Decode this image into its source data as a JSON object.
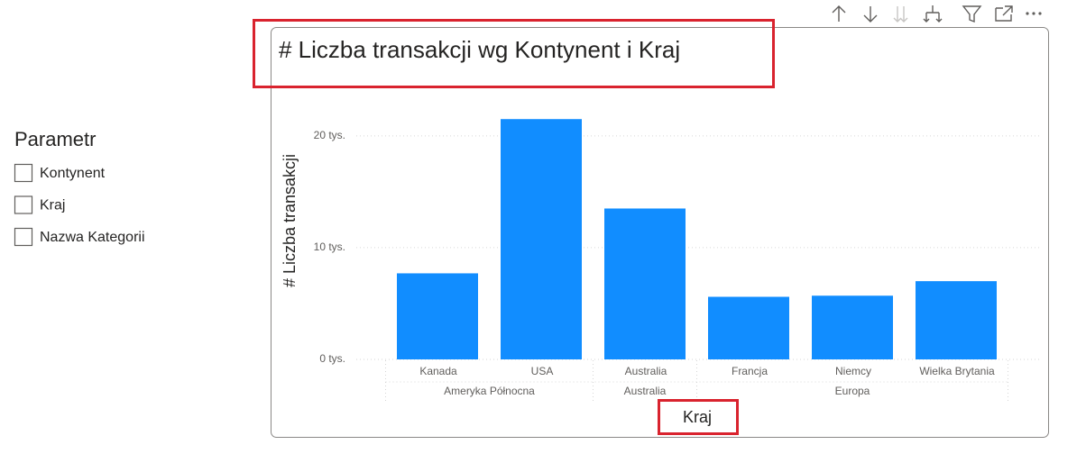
{
  "slicer": {
    "title": "Parametr",
    "items": [
      "Kontynent",
      "Kraj",
      "Nazwa Kategorii"
    ]
  },
  "chart_data": {
    "type": "bar",
    "title": "# Liczba transakcji wg Kontynent i Kraj",
    "y_label": "# Liczba transakcji",
    "x_label": "Kraj",
    "categories": [
      "Kanada",
      "USA",
      "Australia",
      "Francja",
      "Niemcy",
      "Wielka Brytania"
    ],
    "category_groups": [
      "Ameryka Północna",
      "Ameryka Północna",
      "Australia",
      "Europa",
      "Europa",
      "Europa"
    ],
    "values": [
      7700,
      21500,
      13500,
      5600,
      5700,
      7000
    ],
    "color": "#118dff",
    "ylim": [
      0,
      22000
    ],
    "yticks": [
      {
        "value": 0,
        "label": "0 tys."
      },
      {
        "value": 10000,
        "label": "10 tys."
      },
      {
        "value": 20000,
        "label": "20 tys."
      }
    ],
    "grid": true
  }
}
